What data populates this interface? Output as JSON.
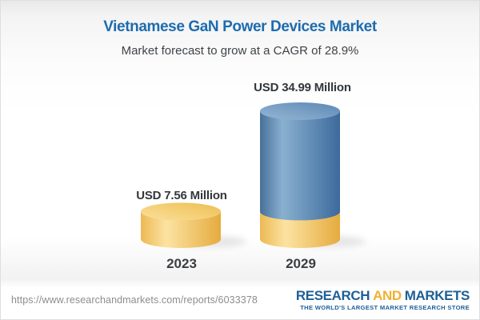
{
  "chart_data": {
    "type": "bar",
    "style": "3d-cylinder",
    "title": "Vietnamese GaN Power Devices Market",
    "subtitle": "Market forecast to grow at a CAGR of 28.9%",
    "cagr_pct": 28.9,
    "unit": "USD Million",
    "categories": [
      "2023",
      "2029"
    ],
    "values": [
      7.56,
      34.99
    ],
    "value_labels": [
      "USD 7.56 Million",
      "USD 34.99 Million"
    ],
    "bars": [
      {
        "category": "2023",
        "total": 7.56,
        "segments": [
          {
            "color": "yellow",
            "value": 7.56
          }
        ]
      },
      {
        "category": "2029",
        "total": 34.99,
        "segments": [
          {
            "color": "yellow",
            "value": 7.56
          },
          {
            "color": "blue",
            "value": 27.43
          }
        ]
      }
    ],
    "colors": {
      "yellow": "#f0c464",
      "blue": "#5c88b5"
    },
    "legend": "none",
    "grid": "off"
  },
  "header": {
    "title_color": "#1d6cae"
  },
  "footer": {
    "url": "https://www.researchandmarkets.com/reports/6033378",
    "logo": {
      "word1": "RESEARCH",
      "word2": "AND",
      "word3": "MARKETS",
      "tagline": "THE WORLD'S LARGEST MARKET RESEARCH STORE",
      "blue": "#1e5f97",
      "gold": "#f2b02e"
    }
  }
}
